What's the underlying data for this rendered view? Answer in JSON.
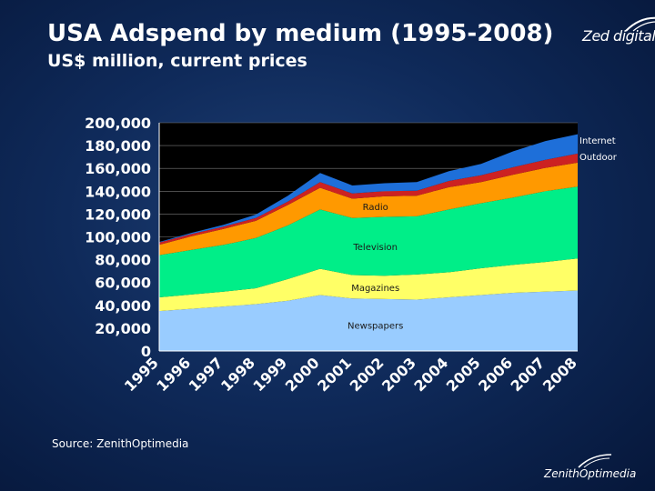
{
  "header": {
    "title": "USA Adspend by medium (1995-2008)",
    "subtitle": "US$ million, current prices"
  },
  "branding": {
    "top_logo_text": "Zed digital",
    "bottom_logo_text": "ZenithOptimedia"
  },
  "footer": {
    "source": "Source: ZenithOptimedia"
  },
  "colors": {
    "background": "#0f2a5a",
    "plot_background": "#000000",
    "newspapers": "#99ccff",
    "magazines": "#ffff66",
    "television": "#00ee88",
    "radio": "#ff9900",
    "outdoor": "#cc2222",
    "internet": "#1e6fd9"
  },
  "chart_data": {
    "type": "area",
    "stacked": true,
    "title": "USA Adspend by medium (1995-2008)",
    "ylabel": "US$ million, current prices",
    "xlabel": "",
    "ylim": [
      0,
      200000
    ],
    "yticks": [
      0,
      20000,
      40000,
      60000,
      80000,
      100000,
      120000,
      140000,
      160000,
      180000,
      200000
    ],
    "ytick_labels": [
      "0",
      "20,000",
      "40,000",
      "60,000",
      "80,000",
      "100,000",
      "120,000",
      "140,000",
      "160,000",
      "180,000",
      "200,000"
    ],
    "categories": [
      "1995",
      "1996",
      "1997",
      "1998",
      "1999",
      "2000",
      "2001",
      "2002",
      "2003",
      "2004",
      "2005",
      "2006",
      "2007",
      "2008"
    ],
    "grid": true,
    "series": [
      {
        "name": "Newspapers",
        "label": "Newspapers",
        "color": "#99ccff",
        "values": [
          35000,
          37000,
          39000,
          41000,
          44000,
          49000,
          46000,
          45500,
          45000,
          47000,
          49000,
          51000,
          52000,
          53000
        ]
      },
      {
        "name": "Magazines",
        "label": "Magazines",
        "color": "#ffff66",
        "values": [
          12000,
          12500,
          13000,
          14000,
          19000,
          23000,
          20500,
          20500,
          22000,
          22000,
          23500,
          24500,
          26000,
          28000
        ]
      },
      {
        "name": "Television",
        "label": "Television",
        "color": "#00ee88",
        "values": [
          37000,
          39000,
          41000,
          44000,
          47000,
          52000,
          50000,
          51500,
          51000,
          55000,
          57000,
          59000,
          62000,
          63000
        ]
      },
      {
        "name": "Radio",
        "label": "Radio",
        "color": "#ff9900",
        "values": [
          9000,
          12000,
          14000,
          15000,
          18000,
          19000,
          17000,
          18000,
          18000,
          19500,
          18500,
          20000,
          20500,
          21000
        ]
      },
      {
        "name": "Outdoor",
        "label": "Outdoor",
        "color": "#cc2222",
        "values": [
          2000,
          2000,
          2000,
          2500,
          3000,
          5000,
          4500,
          4500,
          4500,
          5500,
          6000,
          6500,
          7000,
          8000
        ]
      },
      {
        "name": "Internet",
        "label": "Internet",
        "color": "#1e6fd9",
        "values": [
          500,
          1000,
          1500,
          3000,
          5000,
          8000,
          7000,
          7000,
          7500,
          8500,
          10000,
          14000,
          16500,
          17000
        ]
      }
    ]
  }
}
